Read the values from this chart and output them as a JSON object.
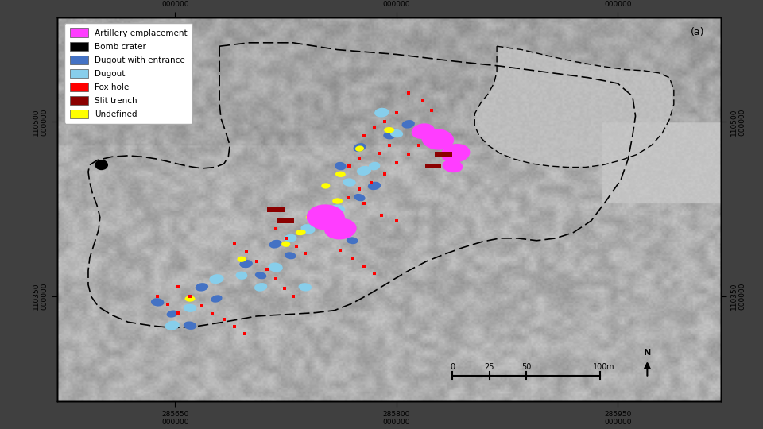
{
  "title": "(a)",
  "outer_bg": "#404040",
  "map_bg": "#b8b8b8",
  "xlim": [
    285570,
    286020
  ],
  "ylim": [
    110260,
    110590
  ],
  "xticks": [
    285650,
    285800,
    285950
  ],
  "yticks": [
    110350,
    110500
  ],
  "tick_suffix": "000000",
  "legend_items": [
    {
      "label": "Artillery emplacement",
      "color": "#FF3DFF"
    },
    {
      "label": "Bomb crater",
      "color": "#000000"
    },
    {
      "label": "Dugout with entrance",
      "color": "#4472C4"
    },
    {
      "label": "Dugout",
      "color": "#87CEEB"
    },
    {
      "label": "Fox hole",
      "color": "#FF0000"
    },
    {
      "label": "Slit trench",
      "color": "#8B0000"
    },
    {
      "label": "Undefined",
      "color": "#FFFF00"
    }
  ],
  "survey_boundary": [
    [
      285680,
      110565
    ],
    [
      285700,
      110568
    ],
    [
      285730,
      110568
    ],
    [
      285760,
      110562
    ],
    [
      285800,
      110558
    ],
    [
      285840,
      110552
    ],
    [
      285870,
      110548
    ],
    [
      285900,
      110543
    ],
    [
      285930,
      110538
    ],
    [
      285950,
      110533
    ],
    [
      285960,
      110522
    ],
    [
      285962,
      110505
    ],
    [
      285960,
      110488
    ],
    [
      285957,
      110468
    ],
    [
      285952,
      110450
    ],
    [
      285942,
      110432
    ],
    [
      285932,
      110415
    ],
    [
      285920,
      110405
    ],
    [
      285908,
      110400
    ],
    [
      285895,
      110398
    ],
    [
      285882,
      110400
    ],
    [
      285870,
      110400
    ],
    [
      285858,
      110397
    ],
    [
      285845,
      110392
    ],
    [
      285832,
      110386
    ],
    [
      285820,
      110380
    ],
    [
      285808,
      110372
    ],
    [
      285796,
      110363
    ],
    [
      285783,
      110353
    ],
    [
      285770,
      110344
    ],
    [
      285758,
      110338
    ],
    [
      285745,
      110336
    ],
    [
      285732,
      110335
    ],
    [
      285718,
      110334
    ],
    [
      285705,
      110333
    ],
    [
      285692,
      110330
    ],
    [
      285678,
      110327
    ],
    [
      285663,
      110324
    ],
    [
      285648,
      110323
    ],
    [
      285633,
      110325
    ],
    [
      285618,
      110328
    ],
    [
      285607,
      110334
    ],
    [
      285598,
      110341
    ],
    [
      285593,
      110350
    ],
    [
      285591,
      110360
    ],
    [
      285591,
      110372
    ],
    [
      285592,
      110383
    ],
    [
      285595,
      110395
    ],
    [
      285598,
      110407
    ],
    [
      285599,
      110418
    ],
    [
      285597,
      110428
    ],
    [
      285594,
      110438
    ],
    [
      285592,
      110448
    ],
    [
      285591,
      110457
    ],
    [
      285592,
      110463
    ],
    [
      285597,
      110467
    ],
    [
      285607,
      110470
    ],
    [
      285618,
      110471
    ],
    [
      285628,
      110470
    ],
    [
      285638,
      110468
    ],
    [
      285648,
      110465
    ],
    [
      285658,
      110462
    ],
    [
      285668,
      110460
    ],
    [
      285677,
      110461
    ],
    [
      285683,
      110464
    ],
    [
      285686,
      110470
    ],
    [
      285687,
      110480
    ],
    [
      285684,
      110492
    ],
    [
      285681,
      110503
    ],
    [
      285680,
      110515
    ],
    [
      285680,
      110528
    ],
    [
      285680,
      110540
    ],
    [
      285680,
      110553
    ],
    [
      285680,
      110565
    ]
  ],
  "field_boundary": [
    [
      285868,
      110565
    ],
    [
      285885,
      110562
    ],
    [
      285902,
      110557
    ],
    [
      285920,
      110552
    ],
    [
      285938,
      110548
    ],
    [
      285955,
      110545
    ],
    [
      285968,
      110544
    ],
    [
      285978,
      110542
    ],
    [
      285985,
      110538
    ],
    [
      285988,
      110528
    ],
    [
      285988,
      110515
    ],
    [
      285985,
      110502
    ],
    [
      285980,
      110490
    ],
    [
      285973,
      110480
    ],
    [
      285963,
      110472
    ],
    [
      285952,
      110467
    ],
    [
      285940,
      110463
    ],
    [
      285928,
      110461
    ],
    [
      285916,
      110461
    ],
    [
      285904,
      110462
    ],
    [
      285892,
      110464
    ],
    [
      285880,
      110468
    ],
    [
      285870,
      110473
    ],
    [
      285862,
      110480
    ],
    [
      285856,
      110488
    ],
    [
      285853,
      110497
    ],
    [
      285853,
      110507
    ],
    [
      285857,
      110516
    ],
    [
      285862,
      110524
    ],
    [
      285866,
      110533
    ],
    [
      285868,
      110543
    ],
    [
      285868,
      110553
    ],
    [
      285868,
      110565
    ]
  ],
  "fox_holes": [
    [
      285808,
      110525
    ],
    [
      285818,
      110518
    ],
    [
      285824,
      110510
    ],
    [
      285800,
      110508
    ],
    [
      285792,
      110500
    ],
    [
      285785,
      110495
    ],
    [
      285778,
      110488
    ],
    [
      285795,
      110480
    ],
    [
      285788,
      110473
    ],
    [
      285775,
      110468
    ],
    [
      285768,
      110462
    ],
    [
      285815,
      110480
    ],
    [
      285808,
      110472
    ],
    [
      285800,
      110465
    ],
    [
      285792,
      110455
    ],
    [
      285783,
      110448
    ],
    [
      285775,
      110442
    ],
    [
      285767,
      110435
    ],
    [
      285778,
      110430
    ],
    [
      285790,
      110420
    ],
    [
      285800,
      110415
    ],
    [
      285762,
      110390
    ],
    [
      285770,
      110383
    ],
    [
      285778,
      110376
    ],
    [
      285785,
      110370
    ],
    [
      285718,
      110408
    ],
    [
      285725,
      110400
    ],
    [
      285732,
      110393
    ],
    [
      285738,
      110387
    ],
    [
      285690,
      110395
    ],
    [
      285698,
      110388
    ],
    [
      285705,
      110380
    ],
    [
      285712,
      110373
    ],
    [
      285718,
      110365
    ],
    [
      285724,
      110357
    ],
    [
      285730,
      110350
    ],
    [
      285652,
      110358
    ],
    [
      285660,
      110350
    ],
    [
      285668,
      110342
    ],
    [
      285675,
      110335
    ],
    [
      285683,
      110330
    ],
    [
      285690,
      110324
    ],
    [
      285697,
      110318
    ],
    [
      285638,
      110350
    ],
    [
      285645,
      110343
    ],
    [
      285652,
      110336
    ]
  ],
  "dugouts_entrance": [
    [
      285808,
      110498,
      9,
      7,
      20
    ],
    [
      285795,
      110488,
      8,
      6,
      -10
    ],
    [
      285775,
      110478,
      9,
      7,
      30
    ],
    [
      285762,
      110462,
      8,
      7,
      -20
    ],
    [
      285785,
      110445,
      9,
      7,
      15
    ],
    [
      285775,
      110435,
      8,
      6,
      -25
    ],
    [
      285762,
      110410,
      9,
      7,
      20
    ],
    [
      285770,
      110398,
      8,
      6,
      -10
    ],
    [
      285718,
      110395,
      9,
      7,
      25
    ],
    [
      285728,
      110385,
      8,
      6,
      -15
    ],
    [
      285698,
      110378,
      9,
      7,
      10
    ],
    [
      285708,
      110368,
      8,
      6,
      -20
    ],
    [
      285668,
      110358,
      9,
      7,
      15
    ],
    [
      285678,
      110348,
      8,
      6,
      25
    ],
    [
      285638,
      110345,
      9,
      7,
      -10
    ],
    [
      285648,
      110335,
      8,
      6,
      20
    ],
    [
      285660,
      110325,
      9,
      7,
      -15
    ]
  ],
  "dugouts": [
    [
      285790,
      110508,
      10,
      8,
      10
    ],
    [
      285800,
      110490,
      9,
      7,
      -15
    ],
    [
      285778,
      110458,
      10,
      8,
      20
    ],
    [
      285768,
      110448,
      9,
      7,
      -10
    ],
    [
      285785,
      110462,
      8,
      7,
      25
    ],
    [
      285760,
      110425,
      10,
      8,
      -5
    ],
    [
      285752,
      110415,
      9,
      7,
      15
    ],
    [
      285740,
      110408,
      10,
      8,
      -20
    ],
    [
      285728,
      110400,
      9,
      7,
      10
    ],
    [
      285718,
      110375,
      10,
      8,
      -15
    ],
    [
      285708,
      110358,
      9,
      7,
      20
    ],
    [
      285695,
      110368,
      8,
      7,
      -10
    ],
    [
      285678,
      110365,
      10,
      8,
      15
    ],
    [
      285660,
      110340,
      9,
      7,
      -5
    ],
    [
      285648,
      110325,
      10,
      8,
      20
    ],
    [
      285738,
      110358,
      9,
      7,
      -10
    ]
  ],
  "artillery": [
    [
      285828,
      110485,
      22,
      18,
      -10
    ],
    [
      285840,
      110473,
      20,
      16,
      15
    ],
    [
      285752,
      110418,
      26,
      22,
      -5
    ],
    [
      285762,
      110408,
      22,
      18,
      10
    ],
    [
      285818,
      110492,
      16,
      13,
      20
    ],
    [
      285838,
      110462,
      14,
      11,
      -15
    ]
  ],
  "slit_trenches": [
    [
      285832,
      110472,
      12,
      5,
      10
    ],
    [
      285825,
      110462,
      11,
      4,
      15
    ],
    [
      285718,
      110425,
      12,
      5,
      5
    ],
    [
      285725,
      110415,
      11,
      4,
      10
    ]
  ],
  "undefined": [
    [
      285795,
      110493,
      7,
      5,
      0
    ],
    [
      285775,
      110477,
      6,
      5,
      10
    ],
    [
      285762,
      110455,
      7,
      5,
      -5
    ],
    [
      285752,
      110445,
      6,
      5,
      5
    ],
    [
      285760,
      110432,
      7,
      5,
      0
    ],
    [
      285735,
      110405,
      7,
      5,
      10
    ],
    [
      285725,
      110395,
      6,
      5,
      -5
    ],
    [
      285742,
      110418,
      7,
      5,
      0
    ],
    [
      285695,
      110382,
      6,
      5,
      5
    ],
    [
      285660,
      110348,
      7,
      5,
      0
    ]
  ],
  "bomb_crater": [
    285600,
    110463,
    9,
    9
  ],
  "scale_x0": 285838,
  "scale_x25": 285863,
  "scale_x50": 285888,
  "scale_x100": 285938,
  "scale_y": 110282,
  "north_x": 285970,
  "north_y": 110278
}
